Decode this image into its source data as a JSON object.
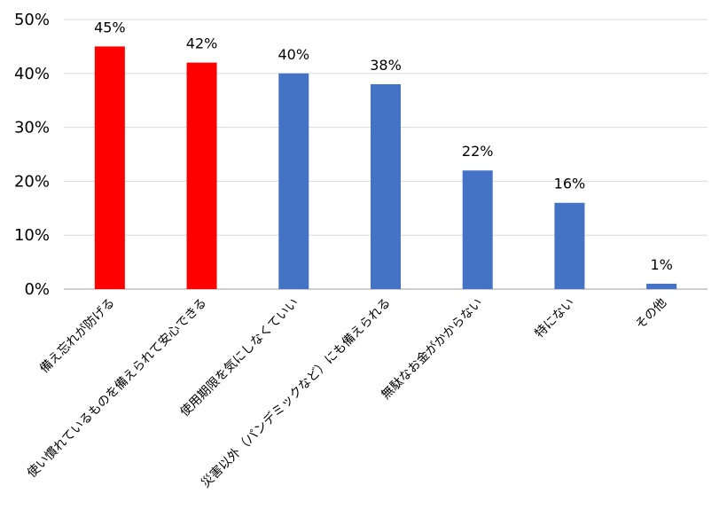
{
  "chart_data": {
    "type": "bar",
    "categories": [
      "備え忘れが防げる",
      "使い慣れているものを備えられて安心できる",
      "使用期限を気にしなくていい",
      "災害以外（パンデミックなど）にも備えられる",
      "無駄なお金がかからない",
      "特にない",
      "その他"
    ],
    "values": [
      45,
      42,
      40,
      38,
      22,
      16,
      1
    ],
    "data_labels": [
      "45%",
      "42%",
      "40%",
      "38%",
      "22%",
      "16%",
      "1%"
    ],
    "bar_colors": [
      "#ff0000",
      "#ff0000",
      "#4472c4",
      "#4472c4",
      "#4472c4",
      "#4472c4",
      "#4472c4"
    ],
    "ylim": [
      0,
      50
    ],
    "y_ticks": [
      0,
      10,
      20,
      30,
      40,
      50
    ],
    "y_tick_labels": [
      "0%",
      "10%",
      "20%",
      "30%",
      "40%",
      "50%"
    ],
    "grid": true,
    "title": "",
    "xlabel": "",
    "ylabel": ""
  }
}
